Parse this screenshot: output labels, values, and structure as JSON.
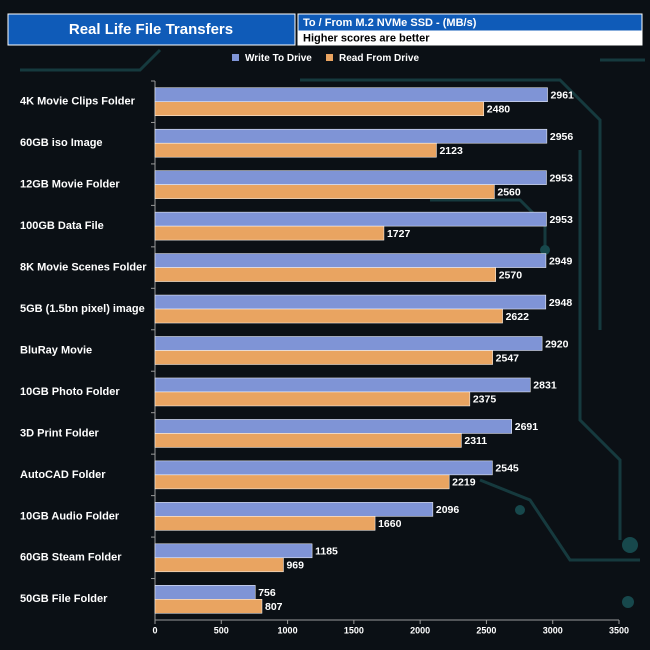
{
  "chart_data": {
    "type": "bar",
    "orientation": "horizontal",
    "title": "Real Life File Transfers",
    "subtitle": "To / From M.2 NVMe SSD - (MB/s)",
    "note": "Higher scores are better",
    "categories": [
      "4K Movie Clips Folder",
      "60GB iso Image",
      "12GB Movie Folder",
      "100GB Data File",
      "8K Movie Scenes Folder",
      "5GB (1.5bn pixel) image",
      "BluRay Movie",
      "10GB Photo Folder",
      "3D Print Folder",
      "AutoCAD Folder",
      "10GB Audio Folder",
      "60GB Steam Folder",
      "50GB File Folder"
    ],
    "series": [
      {
        "name": "Write To Drive",
        "color": "#7f94d6",
        "values": [
          2961,
          2956,
          2953,
          2953,
          2949,
          2948,
          2920,
          2831,
          2691,
          2545,
          2096,
          1185,
          756
        ]
      },
      {
        "name": "Read From Drive",
        "color": "#e9a461",
        "values": [
          2480,
          2123,
          2560,
          1727,
          2570,
          2622,
          2547,
          2375,
          2311,
          2219,
          1660,
          969,
          807
        ]
      }
    ],
    "xlim": [
      0,
      3500
    ],
    "xticks": [
      0,
      500,
      1000,
      1500,
      2000,
      2500,
      3000,
      3500
    ],
    "legend": "top",
    "grid": false
  }
}
